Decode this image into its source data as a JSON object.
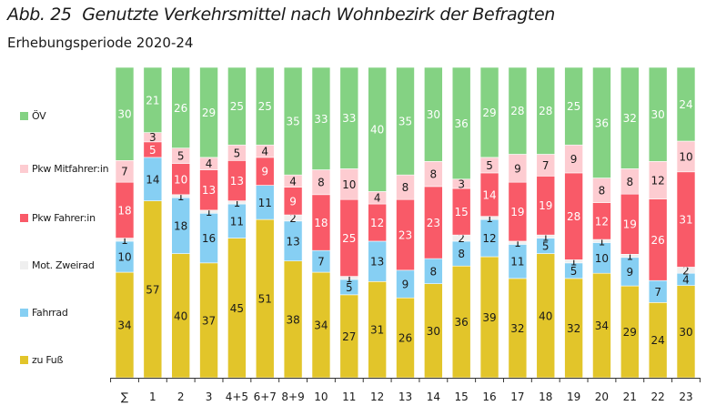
{
  "header": {
    "figure_number": "Abb. 25",
    "title": "Genutzte Verkehrsmittel nach Wohnbezirk der Befragten",
    "subtitle": "Erhebungsperiode 2020-24"
  },
  "chart_data": {
    "type": "bar",
    "stacked": true,
    "orientation": "vertical",
    "title": "Abb. 25  Genutzte Verkehrsmittel nach Wohnbezirk der Befragten",
    "subtitle": "Erhebungsperiode 2020-24",
    "xlabel": "",
    "ylabel": "",
    "unit": "%",
    "ylim": [
      0,
      100
    ],
    "grid": false,
    "legend_position": "left",
    "categories": [
      "∑",
      "1",
      "2",
      "3",
      "4+5",
      "6+7",
      "8+9",
      "10",
      "11",
      "12",
      "13",
      "14",
      "15",
      "16",
      "17",
      "18",
      "19",
      "20",
      "21",
      "22",
      "23"
    ],
    "series": [
      {
        "name": "zu Fuß",
        "color": "#e2c52a",
        "label_color": "#1a1a1a",
        "values": [
          34,
          57,
          40,
          37,
          45,
          51,
          38,
          34,
          27,
          31,
          26,
          30,
          36,
          39,
          32,
          40,
          32,
          34,
          29,
          24,
          30
        ]
      },
      {
        "name": "Fahrrad",
        "color": "#86cff3",
        "label_color": "#1a1a1a",
        "values": [
          10,
          14,
          18,
          16,
          11,
          11,
          13,
          7,
          5,
          13,
          9,
          8,
          8,
          12,
          11,
          5,
          5,
          10,
          9,
          7,
          4
        ]
      },
      {
        "name": "Mot. Zweirad",
        "color": "#efefef",
        "label_color": "#1a1a1a",
        "values": [
          1,
          0,
          1,
          1,
          1,
          0,
          2,
          0,
          1,
          0,
          0,
          0,
          2,
          1,
          1,
          1,
          1,
          1,
          1,
          0,
          2
        ]
      },
      {
        "name": "Pkw Fahrer:in",
        "color": "#f95a68",
        "label_color": "#ffffff",
        "values": [
          18,
          5,
          10,
          13,
          13,
          9,
          9,
          18,
          25,
          12,
          23,
          23,
          15,
          14,
          19,
          19,
          28,
          12,
          19,
          26,
          31
        ]
      },
      {
        "name": "Pkw Mitfahrer:in",
        "color": "#fdccd1",
        "label_color": "#1a1a1a",
        "values": [
          7,
          3,
          5,
          4,
          5,
          4,
          4,
          8,
          10,
          4,
          8,
          8,
          3,
          5,
          9,
          7,
          9,
          8,
          8,
          12,
          10
        ]
      },
      {
        "name": "ÖV",
        "color": "#84d283",
        "label_color": "#ffffff",
        "values": [
          30,
          21,
          26,
          29,
          25,
          25,
          35,
          33,
          33,
          40,
          35,
          30,
          36,
          29,
          28,
          28,
          25,
          36,
          32,
          30,
          24
        ]
      }
    ]
  },
  "legend": [
    {
      "label": "ÖV",
      "color": "#84d283"
    },
    {
      "label": "Pkw Mitfahrer:in",
      "color": "#fdccd1"
    },
    {
      "label": "Pkw Fahrer:in",
      "color": "#f95a68"
    },
    {
      "label": "Mot. Zweirad",
      "color": "#efefef"
    },
    {
      "label": "Fahrrad",
      "color": "#86cff3"
    },
    {
      "label": "zu Fuß",
      "color": "#e2c52a"
    }
  ]
}
